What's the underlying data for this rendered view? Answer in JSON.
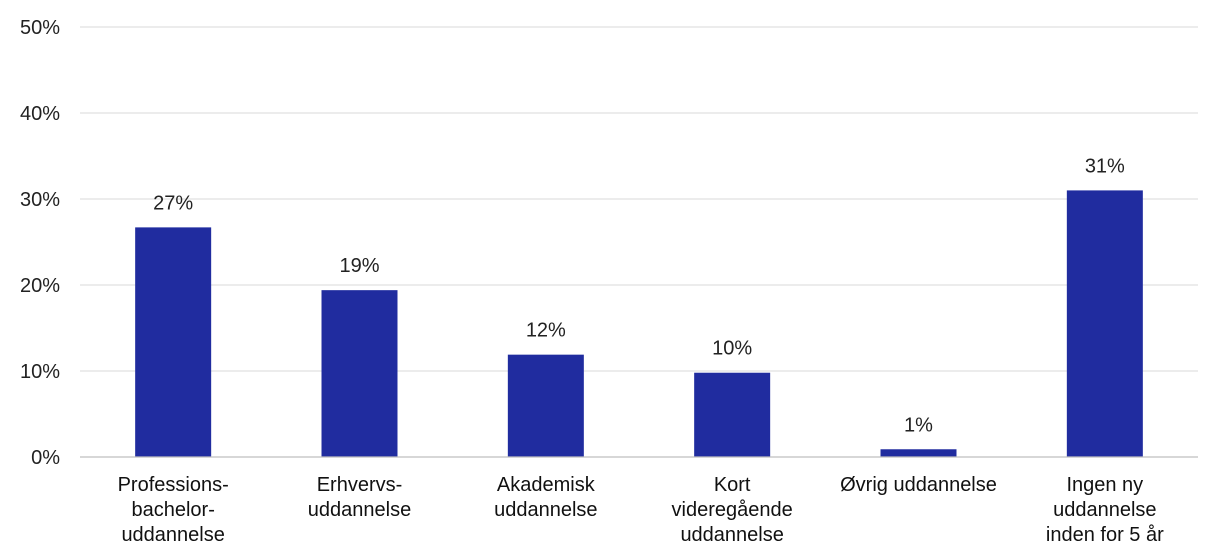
{
  "chart_data": {
    "type": "bar",
    "title": "",
    "xlabel": "",
    "ylabel": "",
    "categories": [
      [
        "Professions-",
        "bachelor-",
        "uddannelse"
      ],
      [
        "Erhvervs-",
        "uddannelse"
      ],
      [
        "Akademisk",
        "uddannelse"
      ],
      [
        "Kort",
        "videregående",
        "uddannelse"
      ],
      [
        "Øvrig uddannelse"
      ],
      [
        "Ingen ny",
        "uddannelse",
        "inden for 5 år"
      ]
    ],
    "values": [
      26.7,
      19.4,
      11.9,
      9.8,
      0.9,
      31.0
    ],
    "data_labels": [
      "27%",
      "19%",
      "12%",
      "10%",
      "1%",
      "31%"
    ],
    "ylim": [
      0,
      50
    ],
    "yticks": [
      0,
      10,
      20,
      30,
      40,
      50
    ],
    "ytick_labels": [
      "0%",
      "10%",
      "20%",
      "30%",
      "40%",
      "50%"
    ],
    "grid": true,
    "legend": "none",
    "bar_color": "#202c9f"
  }
}
